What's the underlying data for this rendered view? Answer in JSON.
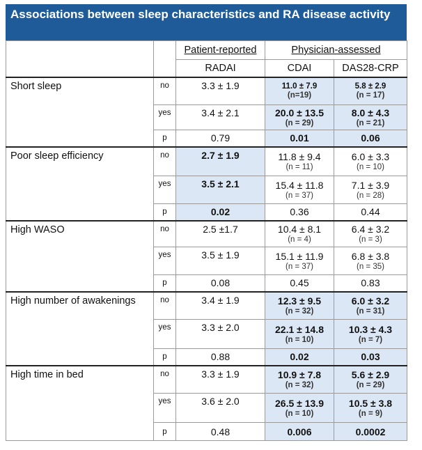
{
  "title": "Associations between sleep characteristics and RA disease activity",
  "header": {
    "group_patient": "Patient-reported",
    "group_physician": "Physician-assessed",
    "col_radai": "RADAI",
    "col_cdai": "CDAI",
    "col_das": "DAS28-CRP"
  },
  "rows": [
    {
      "label": "Short sleep",
      "no": {
        "lab": "no",
        "radai": "3.3 ± 1.9",
        "cdai": "11.0 ± 7.9",
        "cdai_n": "(n=19)",
        "das": "5.8 ± 2.9",
        "das_n": "(n = 17)"
      },
      "yes": {
        "lab": "yes",
        "radai": "3.4 ± 2.1",
        "cdai": "20.0 ± 13.5",
        "cdai_n": "(n = 29)",
        "das": "8.0 ± 4.3",
        "das_n": "(n = 21)"
      },
      "p": {
        "lab": "p",
        "radai": "0.79",
        "cdai": "0.01",
        "das": "0.06"
      }
    },
    {
      "label": "Poor sleep efficiency",
      "no": {
        "lab": "no",
        "radai": "2.7 ± 1.9",
        "cdai": "11.8 ± 9.4",
        "cdai_n": "(n = 11)",
        "das": "6.0 ± 3.3",
        "das_n": "(n = 10)"
      },
      "yes": {
        "lab": "yes",
        "radai": "3.5 ± 2.1",
        "cdai": "15.4 ± 11.8",
        "cdai_n": "(n = 37)",
        "das": "7.1 ± 3.9",
        "das_n": "(n = 28)"
      },
      "p": {
        "lab": "p",
        "radai": "0.02",
        "cdai": "0.36",
        "das": "0.44"
      }
    },
    {
      "label": "High WASO",
      "no": {
        "lab": "no",
        "radai": "2.5 ±1.7",
        "cdai": "10.4 ± 8.1",
        "cdai_n": "(n = 4)",
        "das": "6.4 ± 3.2",
        "das_n": "(n = 3)"
      },
      "yes": {
        "lab": "yes",
        "radai": "3.5 ± 1.9",
        "cdai": "15.1 ± 11.9",
        "cdai_n": "(n = 37)",
        "das": "6.8 ± 3.8",
        "das_n": "(n = 35)"
      },
      "p": {
        "lab": "p",
        "radai": "0.08",
        "cdai": "0.45",
        "das": "0.83"
      }
    },
    {
      "label": "High number of awakenings",
      "no": {
        "lab": "no",
        "radai": "3.4 ± 1.9",
        "cdai": "12.3 ± 9.5",
        "cdai_n": "(n = 32)",
        "das": "6.0 ± 3.2",
        "das_n": "(n = 31)"
      },
      "yes": {
        "lab": "yes",
        "radai": "3.3 ± 2.0",
        "cdai": "22.1 ± 14.8",
        "cdai_n": "(n = 10)",
        "das": "10.3 ± 4.3",
        "das_n": "(n = 7)"
      },
      "p": {
        "lab": "p",
        "radai": "0.88",
        "cdai": "0.02",
        "das": "0.03"
      }
    },
    {
      "label": "High time in bed",
      "no": {
        "lab": "no",
        "radai": "3.3 ± 1.9",
        "cdai": "10.9 ± 7.8",
        "cdai_n": "(n = 32)",
        "das": "5.6 ± 2.9",
        "das_n": "(n = 29)"
      },
      "yes": {
        "lab": "yes",
        "radai": "3.6 ± 2.0",
        "cdai": "26.5 ± 13.9",
        "cdai_n": "(n = 10)",
        "das": "10.5 ± 3.8",
        "das_n": "(n = 9)"
      },
      "p": {
        "lab": "p",
        "radai": "0.48",
        "cdai": "0.006",
        "das": "0.0002"
      }
    }
  ],
  "colors": {
    "title_bg": "#1f5b99",
    "highlight": "#dbe7f4"
  }
}
